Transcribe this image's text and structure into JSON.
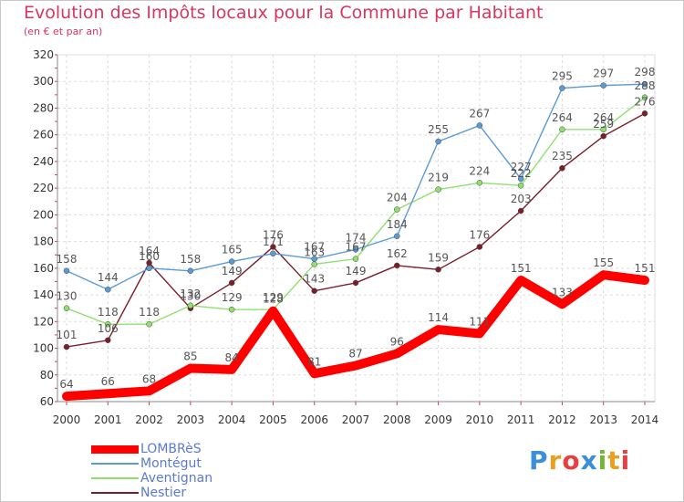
{
  "chart_data": {
    "type": "line",
    "title": "Evolution des Impôts locaux pour la Commune par Habitant",
    "subtitle": "(en € et par an)",
    "xlabel": "",
    "ylabel": "",
    "x": [
      2000,
      2001,
      2002,
      2003,
      2004,
      2005,
      2006,
      2007,
      2008,
      2009,
      2010,
      2011,
      2012,
      2013,
      2014
    ],
    "ylim": [
      60,
      320
    ],
    "yticks": [
      60,
      80,
      100,
      120,
      140,
      160,
      180,
      200,
      220,
      240,
      260,
      280,
      300,
      320
    ],
    "grid": true,
    "legend_position": "bottom-left",
    "series": [
      {
        "name": "LOMBRèS",
        "color": "#ff0000",
        "values": [
          64,
          66,
          68,
          85,
          84,
          128,
          81,
          87,
          96,
          114,
          111,
          151,
          133,
          155,
          151
        ]
      },
      {
        "name": "Montégut",
        "color": "#5b9bd5",
        "values": [
          158,
          144,
          160,
          158,
          165,
          171,
          167,
          174,
          184,
          255,
          267,
          227,
          295,
          297,
          298
        ]
      },
      {
        "name": "Aventignan",
        "color": "#90e070",
        "values": [
          130,
          118,
          118,
          132,
          129,
          129,
          163,
          167,
          204,
          219,
          224,
          222,
          264,
          264,
          288
        ]
      },
      {
        "name": "Nestier",
        "color": "#7a1f2a",
        "values": [
          101,
          106,
          164,
          130,
          149,
          176,
          143,
          149,
          162,
          159,
          176,
          203,
          235,
          259,
          276
        ]
      }
    ]
  },
  "logo": {
    "letters": [
      "P",
      "r",
      "o",
      "x",
      "i",
      "t",
      "i"
    ],
    "colors": [
      "#3a8fd8",
      "#e8a020",
      "#e84040",
      "#3a8fd8",
      "#70b830",
      "#e8a020",
      "#e84040"
    ]
  }
}
